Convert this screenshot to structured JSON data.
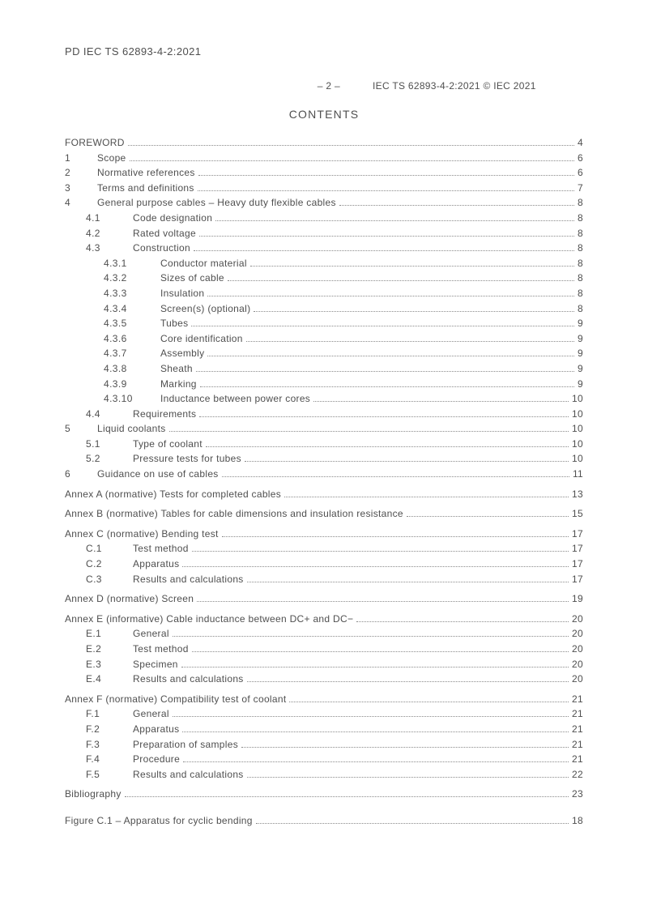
{
  "doc_id_top": "PD IEC TS 62893-4-2:2021",
  "header_page": "– 2 –",
  "header_right": "IEC TS 62893-4-2:2021 © IEC 2021",
  "contents_title": "CONTENTS",
  "toc": [
    {
      "lvl": 0,
      "num": "",
      "label": "FOREWORD",
      "page": "4"
    },
    {
      "lvl": 1,
      "num": "1",
      "label": "Scope",
      "page": "6"
    },
    {
      "lvl": 1,
      "num": "2",
      "label": "Normative references",
      "page": "6"
    },
    {
      "lvl": 1,
      "num": "3",
      "label": "Terms and definitions",
      "page": "7"
    },
    {
      "lvl": 1,
      "num": "4",
      "label": "General purpose cables – Heavy duty flexible cables",
      "page": "8"
    },
    {
      "lvl": 2,
      "num": "4.1",
      "label": "Code designation",
      "page": "8"
    },
    {
      "lvl": 2,
      "num": "4.2",
      "label": "Rated voltage",
      "page": "8"
    },
    {
      "lvl": 2,
      "num": "4.3",
      "label": "Construction",
      "page": "8"
    },
    {
      "lvl": 3,
      "num": "4.3.1",
      "label": "Conductor material",
      "page": "8"
    },
    {
      "lvl": 3,
      "num": "4.3.2",
      "label": "Sizes of cable",
      "page": "8"
    },
    {
      "lvl": 3,
      "num": "4.3.3",
      "label": "Insulation",
      "page": "8"
    },
    {
      "lvl": 3,
      "num": "4.3.4",
      "label": "Screen(s) (optional)",
      "page": "8"
    },
    {
      "lvl": 3,
      "num": "4.3.5",
      "label": "Tubes",
      "page": "9"
    },
    {
      "lvl": 3,
      "num": "4.3.6",
      "label": "Core identification",
      "page": "9"
    },
    {
      "lvl": 3,
      "num": "4.3.7",
      "label": "Assembly",
      "page": "9"
    },
    {
      "lvl": 3,
      "num": "4.3.8",
      "label": "Sheath",
      "page": "9"
    },
    {
      "lvl": 3,
      "num": "4.3.9",
      "label": "Marking",
      "page": "9"
    },
    {
      "lvl": 3,
      "num": "4.3.10",
      "label": "Inductance between power cores",
      "page": "10"
    },
    {
      "lvl": 2,
      "num": "4.4",
      "label": "Requirements",
      "page": "10"
    },
    {
      "lvl": 1,
      "num": "5",
      "label": "Liquid coolants",
      "page": "10"
    },
    {
      "lvl": 2,
      "num": "5.1",
      "label": "Type of coolant",
      "page": "10"
    },
    {
      "lvl": 2,
      "num": "5.2",
      "label": "Pressure tests for tubes",
      "page": "10"
    },
    {
      "lvl": 1,
      "num": "6",
      "label": "Guidance on use of cables",
      "page": "11"
    },
    {
      "lvl": 0,
      "num": "",
      "label": "Annex A (normative)  Tests for completed cables",
      "page": "13",
      "gap_before": true
    },
    {
      "lvl": 0,
      "num": "",
      "label": "Annex B (normative)  Tables for cable dimensions and insulation resistance",
      "page": "15",
      "gap_before": true
    },
    {
      "lvl": 0,
      "num": "",
      "label": "Annex C (normative)  Bending test",
      "page": "17",
      "gap_before": true
    },
    {
      "lvl": 2,
      "num": "C.1",
      "label": "Test method",
      "page": "17"
    },
    {
      "lvl": 2,
      "num": "C.2",
      "label": "Apparatus",
      "page": "17"
    },
    {
      "lvl": 2,
      "num": "C.3",
      "label": "Results and calculations",
      "page": "17"
    },
    {
      "lvl": 0,
      "num": "",
      "label": "Annex D (normative)  Screen",
      "page": "19",
      "gap_before": true
    },
    {
      "lvl": 0,
      "num": "",
      "label": "Annex E (informative)  Cable inductance between DC+ and DC−",
      "page": "20",
      "gap_before": true
    },
    {
      "lvl": 2,
      "num": "E.1",
      "label": "General",
      "page": "20"
    },
    {
      "lvl": 2,
      "num": "E.2",
      "label": "Test method",
      "page": "20"
    },
    {
      "lvl": 2,
      "num": "E.3",
      "label": "Specimen",
      "page": "20"
    },
    {
      "lvl": 2,
      "num": "E.4",
      "label": "Results and calculations",
      "page": "20"
    },
    {
      "lvl": 0,
      "num": "",
      "label": "Annex F (normative)  Compatibility test of coolant",
      "page": "21",
      "gap_before": true
    },
    {
      "lvl": 2,
      "num": "F.1",
      "label": "General",
      "page": "21"
    },
    {
      "lvl": 2,
      "num": "F.2",
      "label": "Apparatus",
      "page": "21"
    },
    {
      "lvl": 2,
      "num": "F.3",
      "label": "Preparation of samples",
      "page": "21"
    },
    {
      "lvl": 2,
      "num": "F.4",
      "label": "Procedure",
      "page": "21"
    },
    {
      "lvl": 2,
      "num": "F.5",
      "label": "Results and calculations",
      "page": "22"
    },
    {
      "lvl": 0,
      "num": "",
      "label": "Bibliography",
      "page": "23",
      "gap_before": true
    },
    {
      "lvl": 0,
      "num": "",
      "label": "Figure C.1 – Apparatus for cyclic bending",
      "page": "18",
      "gap_before_lg": true
    }
  ]
}
